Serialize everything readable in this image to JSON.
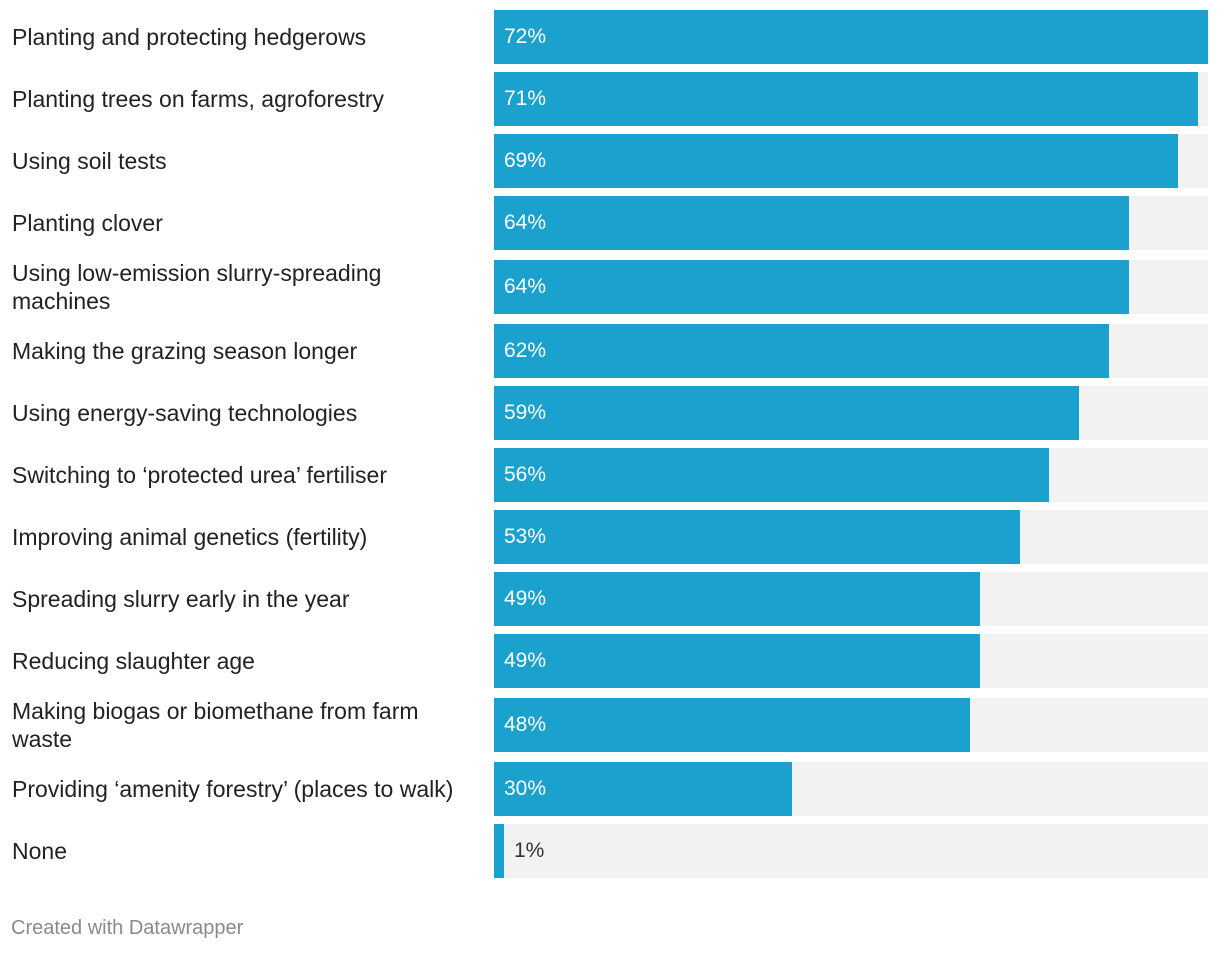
{
  "chart_data": {
    "type": "bar",
    "orientation": "horizontal",
    "categories": [
      "Planting and protecting hedgerows",
      "Planting trees on farms, agroforestry",
      "Using soil tests",
      "Planting clover",
      "Using low-emission slurry-spreading machines",
      "Making the grazing season longer",
      "Using energy-saving technologies",
      "Switching to ‘protected urea’ fertiliser",
      "Improving animal genetics (fertility)",
      "Spreading slurry early in the year",
      "Reducing slaughter age",
      "Making biogas or biomethane from farm waste",
      "Providing ‘amenity forestry’ (places to walk)",
      "None"
    ],
    "values": [
      72,
      71,
      69,
      64,
      64,
      62,
      59,
      56,
      53,
      49,
      49,
      48,
      30,
      1
    ],
    "value_labels": [
      "72%",
      "71%",
      "69%",
      "64%",
      "64%",
      "62%",
      "59%",
      "56%",
      "53%",
      "49%",
      "49%",
      "48%",
      "30%",
      "1%"
    ],
    "xlim": [
      0,
      72
    ],
    "unit": "%",
    "bar_color": "#1aa1ce",
    "track_color": "#f2f2f2"
  },
  "footer": {
    "credit": "Created with Datawrapper"
  }
}
